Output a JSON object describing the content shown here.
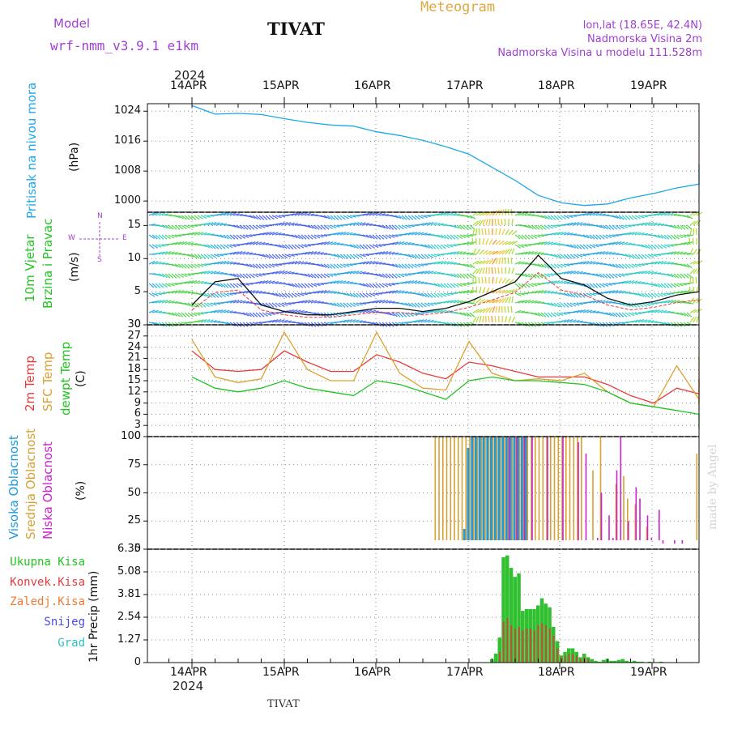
{
  "header": {
    "model_label": "Model",
    "model_name": "wrf-nmm_v3.9.1  e1km",
    "station": "TIVAT",
    "meteogram": "Meteogram",
    "lonlat": "lon,lat (18.65E, 42.4N)",
    "altitude": "Nadmorska Visina 2m",
    "model_altitude": "Nadmorska Visina u modelu 111.528m"
  },
  "footer": {
    "station": "TIVAT",
    "watermark": "made by Angel"
  },
  "colors": {
    "pressure": "#1ea8e8",
    "temp2m": "#e83a3a",
    "sfc": "#e0a030",
    "dewpt": "#22c422",
    "high": "#1e9be0",
    "mid": "#d8a030",
    "low": "#cc22cc",
    "total_precip": "#30c030",
    "conv_precip": "#e03a3a",
    "grid": "#888888",
    "purple": "#a040d0"
  },
  "axes": {
    "year": "2024",
    "days": [
      "14APR",
      "15APR",
      "16APR",
      "17APR",
      "18APR",
      "19APR"
    ]
  },
  "panels": {
    "pressure": {
      "label": "Pritisak na nivou mora",
      "unit": "(hPa)",
      "ticks": [
        "1024",
        "1016",
        "1008",
        "1000"
      ]
    },
    "wind": {
      "label1": "10m Vjetar",
      "label2": "Brzina i Pravac",
      "unit": "(m/s)",
      "ticks": [
        "15",
        "10",
        "5",
        "0"
      ],
      "compass_n": "N",
      "compass_s": "S",
      "compass_w": "W",
      "compass_e": "E"
    },
    "temp": {
      "label1": "2m Temp",
      "label2": "SFC Temp",
      "label3": "dewpt Temp",
      "unit": "(C)",
      "ticks": [
        "30",
        "27",
        "24",
        "21",
        "18",
        "15",
        "12",
        "9",
        "6",
        "3",
        "0"
      ]
    },
    "cloud": {
      "label1": "Visoka Oblacnost",
      "label2": "Srednja Oblacnost",
      "label3": "Niska Oblacnost",
      "unit": "(%)",
      "ticks": [
        "100",
        "75",
        "50",
        "25",
        "0"
      ]
    },
    "precip": {
      "legend": [
        "Ukupna Kisa",
        "Konvek.Kisa",
        "Zaledj.Kisa",
        "Snijeg",
        "Grad"
      ],
      "unit": "1hr Precip (mm)",
      "ticks": [
        "6.35",
        "5.08",
        "3.81",
        "2.54",
        "1.27",
        "0"
      ]
    }
  },
  "chart_data": [
    {
      "type": "line",
      "title": "Pritisak na nivou mora",
      "ylabel": "(hPa)",
      "ylim": [
        997,
        1026
      ],
      "x_hours": [
        0,
        6,
        12,
        18,
        24,
        30,
        36,
        42,
        48,
        54,
        60,
        66,
        72,
        78,
        84,
        90,
        96,
        102,
        108,
        114,
        120,
        126,
        132,
        138,
        144,
        150
      ],
      "series": [
        {
          "name": "Pritisak na nivou mora",
          "values": [
            1025.5,
            1023.2,
            1023.4,
            1023.1,
            1022.0,
            1021.0,
            1020.3,
            1020.0,
            1018.5,
            1017.5,
            1016.2,
            1014.5,
            1012.5,
            1009.0,
            1005.5,
            1001.5,
            999.5,
            998.8,
            999.2,
            1000.8,
            1002.0,
            1003.5,
            1004.5,
            1006.0,
            1007.8,
            1009.8
          ]
        }
      ]
    },
    {
      "type": "line",
      "title": "10m Vjetar Brzina i Pravac",
      "ylabel": "(m/s)",
      "ylim": [
        0,
        17
      ],
      "x_hours": [
        0,
        6,
        12,
        18,
        24,
        30,
        36,
        42,
        48,
        54,
        60,
        66,
        72,
        78,
        84,
        90,
        96,
        102,
        108,
        114,
        120,
        126,
        132,
        138,
        144,
        150
      ],
      "series": [
        {
          "name": "10m Vjetar",
          "values": [
            3.0,
            6.5,
            7.0,
            3.0,
            2.0,
            1.5,
            1.5,
            2.0,
            2.5,
            2.5,
            2.0,
            2.5,
            3.5,
            5.0,
            6.5,
            10.5,
            7.0,
            6.0,
            4.0,
            3.0,
            3.5,
            4.5,
            5.0,
            6.0,
            8.5,
            11.5
          ]
        }
      ]
    },
    {
      "type": "line",
      "title": "Temperature",
      "ylabel": "(C)",
      "ylim": [
        0,
        30
      ],
      "x_hours": [
        0,
        6,
        12,
        18,
        24,
        30,
        36,
        42,
        48,
        54,
        60,
        66,
        72,
        78,
        84,
        90,
        96,
        102,
        108,
        114,
        120,
        126,
        132,
        138,
        144,
        150
      ],
      "series": [
        {
          "name": "2m Temp",
          "values": [
            23.0,
            18.0,
            17.5,
            18.0,
            23.0,
            20.0,
            17.5,
            17.5,
            22.0,
            20.0,
            17.0,
            15.5,
            20.0,
            19.0,
            17.5,
            16.0,
            16.0,
            16.0,
            14.0,
            11.0,
            9.0,
            13.0,
            11.5,
            9.0,
            9.5,
            15.5
          ]
        },
        {
          "name": "SFC Temp",
          "values": [
            26.0,
            16.0,
            14.5,
            15.5,
            28.0,
            18.0,
            15.0,
            15.0,
            28.0,
            17.0,
            13.0,
            12.5,
            25.5,
            17.0,
            15.0,
            15.5,
            15.0,
            17.0,
            12.0,
            9.0,
            8.0,
            19.0,
            10.0,
            7.0,
            8.0,
            21.5
          ]
        },
        {
          "name": "dewpt Temp",
          "values": [
            16.0,
            13.0,
            12.0,
            13.0,
            15.0,
            13.0,
            12.0,
            11.0,
            15.0,
            14.0,
            12.0,
            10.0,
            15.0,
            16.0,
            15.0,
            15.0,
            14.5,
            14.0,
            12.0,
            9.0,
            8.0,
            7.0,
            6.0,
            5.0,
            4.0,
            2.0
          ]
        }
      ]
    },
    {
      "type": "bar",
      "title": "Oblacnost",
      "ylabel": "(%)",
      "ylim": [
        0,
        100
      ],
      "series": [
        {
          "name": "Visoka Oblacnost",
          "x_hours": [
            71,
            72,
            73,
            74,
            75,
            76,
            77,
            78,
            79,
            80,
            81,
            82,
            83,
            84,
            85,
            86,
            87
          ],
          "values": [
            18,
            90,
            100,
            100,
            100,
            100,
            100,
            100,
            100,
            100,
            100,
            100,
            100,
            100,
            100,
            100,
            100
          ]
        },
        {
          "name": "Srednja Oblacnost",
          "x_hours": [
            63,
            64,
            65,
            66,
            67,
            68,
            69,
            70,
            71,
            72,
            73,
            74,
            75,
            76,
            77,
            78,
            79,
            80,
            81,
            82,
            83,
            84,
            85,
            86,
            87,
            88,
            89,
            90,
            91,
            92,
            93,
            94,
            95,
            96,
            97,
            98,
            99,
            100,
            101,
            104,
            106,
            110,
            112,
            113,
            115,
            118,
            131,
            133
          ],
          "values": [
            100,
            100,
            100,
            100,
            100,
            100,
            100,
            100,
            100,
            100,
            100,
            100,
            100,
            100,
            100,
            100,
            100,
            100,
            100,
            100,
            100,
            100,
            100,
            100,
            100,
            100,
            100,
            100,
            100,
            100,
            100,
            100,
            100,
            100,
            100,
            100,
            100,
            100,
            100,
            70,
            100,
            58,
            65,
            45,
            40,
            20,
            85,
            80
          ]
        },
        {
          "name": "Niska Oblacnost",
          "x_hours": [
            82,
            84,
            86,
            88,
            92,
            96,
            100,
            102,
            105,
            106,
            108,
            109,
            110,
            111,
            113,
            115,
            116,
            118,
            119,
            121,
            122,
            125,
            127,
            132,
            135,
            141
          ],
          "values": [
            100,
            100,
            100,
            100,
            100,
            100,
            95,
            85,
            10,
            50,
            30,
            10,
            70,
            100,
            25,
            55,
            45,
            30,
            10,
            35,
            5,
            5,
            5,
            5,
            60,
            2
          ]
        }
      ]
    },
    {
      "type": "bar",
      "title": "1hr Precip",
      "ylabel": "1hr Precip (mm)",
      "ylim": [
        0,
        6.35
      ],
      "series": [
        {
          "name": "Ukupna Kisa",
          "x_hours": [
            78,
            79,
            80,
            81,
            82,
            83,
            84,
            85,
            86,
            87,
            88,
            89,
            90,
            91,
            92,
            93,
            94,
            95,
            96,
            97,
            98,
            99,
            100,
            101,
            102,
            103,
            104,
            105,
            106,
            107,
            108,
            109,
            110,
            111,
            112,
            113,
            114,
            115,
            116,
            117,
            118,
            119,
            120,
            121,
            122,
            123,
            124,
            125
          ],
          "values": [
            0.2,
            0.5,
            1.4,
            5.9,
            6.0,
            5.3,
            4.8,
            5.0,
            2.9,
            3.0,
            3.0,
            3.0,
            3.2,
            3.6,
            3.3,
            3.1,
            2.0,
            1.2,
            0.4,
            0.6,
            0.8,
            0.8,
            0.6,
            0.3,
            0.5,
            0.3,
            0.2,
            0.1,
            0.05,
            0.15,
            0.2,
            0.1,
            0.1,
            0.15,
            0.2,
            0.1,
            0.05,
            0.1,
            0.05,
            0.05,
            0.02,
            0.05,
            0.02,
            0.0,
            0.05,
            0.02,
            0.02,
            0.01
          ]
        },
        {
          "name": "Konvek.Kisa",
          "x_hours": [
            80,
            81,
            82,
            83,
            84,
            85,
            86,
            87,
            88,
            89,
            90,
            91,
            92,
            93,
            94,
            95,
            96,
            97,
            98,
            99,
            100,
            101,
            102,
            103
          ],
          "values": [
            0.6,
            2.3,
            2.5,
            2.1,
            1.9,
            2.0,
            1.8,
            1.9,
            1.9,
            1.8,
            2.1,
            2.2,
            2.1,
            1.9,
            1.5,
            0.8,
            0.3,
            0.4,
            0.5,
            0.5,
            0.4,
            0.2,
            0.3,
            0.2
          ]
        }
      ]
    }
  ]
}
